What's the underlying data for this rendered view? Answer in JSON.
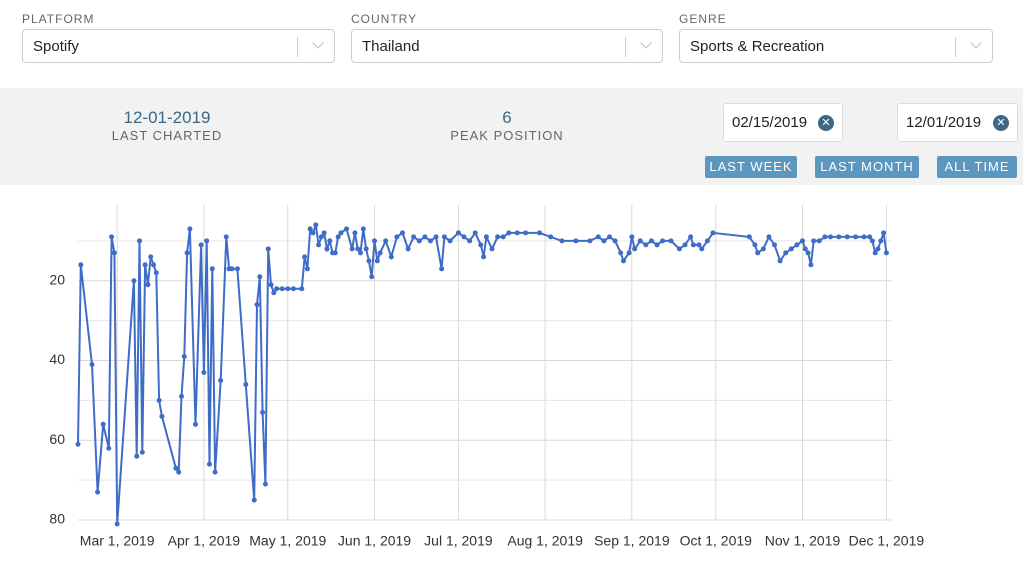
{
  "filters": [
    {
      "label": "PLATFORM",
      "value": "Spotify"
    },
    {
      "label": "COUNTRY",
      "value": "Thailand"
    },
    {
      "label": "GENRE",
      "value": "Sports & Recreation"
    }
  ],
  "stats": [
    {
      "value": "12-01-2019",
      "label": "LAST CHARTED"
    },
    {
      "value": "6",
      "label": "PEAK POSITION"
    }
  ],
  "date_range": {
    "start": "02/15/2019",
    "end": "12/01/2019"
  },
  "buttons": [
    "LAST WEEK",
    "LAST MONTH",
    "ALL TIME"
  ],
  "chart_data": {
    "type": "line",
    "color": "#3f6cc6",
    "grid": true,
    "x": [
      "2019-02-15",
      "2019-02-16",
      "2019-02-20",
      "2019-02-22",
      "2019-02-24",
      "2019-02-26",
      "2019-02-27",
      "2019-02-28",
      "2019-03-01",
      "2019-03-07",
      "2019-03-08",
      "2019-03-09",
      "2019-03-10",
      "2019-03-11",
      "2019-03-12",
      "2019-03-13",
      "2019-03-14",
      "2019-03-15",
      "2019-03-16",
      "2019-03-17",
      "2019-03-22",
      "2019-03-23",
      "2019-03-24",
      "2019-03-25",
      "2019-03-26",
      "2019-03-27",
      "2019-03-29",
      "2019-03-31",
      "2019-04-01",
      "2019-04-02",
      "2019-04-03",
      "2019-04-04",
      "2019-04-05",
      "2019-04-07",
      "2019-04-09",
      "2019-04-10",
      "2019-04-11",
      "2019-04-13",
      "2019-04-16",
      "2019-04-19",
      "2019-04-20",
      "2019-04-21",
      "2019-04-22",
      "2019-04-23",
      "2019-04-24",
      "2019-04-25",
      "2019-04-26",
      "2019-04-27",
      "2019-04-29",
      "2019-05-01",
      "2019-05-03",
      "2019-05-06",
      "2019-05-07",
      "2019-05-08",
      "2019-05-09",
      "2019-05-10",
      "2019-05-11",
      "2019-05-12",
      "2019-05-13",
      "2019-05-14",
      "2019-05-15",
      "2019-05-16",
      "2019-05-17",
      "2019-05-18",
      "2019-05-19",
      "2019-05-20",
      "2019-05-22",
      "2019-05-24",
      "2019-05-25",
      "2019-05-26",
      "2019-05-27",
      "2019-05-28",
      "2019-05-29",
      "2019-05-30",
      "2019-05-31",
      "2019-06-01",
      "2019-06-02",
      "2019-06-03",
      "2019-06-05",
      "2019-06-07",
      "2019-06-09",
      "2019-06-11",
      "2019-06-13",
      "2019-06-15",
      "2019-06-17",
      "2019-06-19",
      "2019-06-21",
      "2019-06-23",
      "2019-06-25",
      "2019-06-26",
      "2019-06-28",
      "2019-07-01",
      "2019-07-03",
      "2019-07-05",
      "2019-07-07",
      "2019-07-09",
      "2019-07-10",
      "2019-07-11",
      "2019-07-13",
      "2019-07-15",
      "2019-07-17",
      "2019-07-19",
      "2019-07-22",
      "2019-07-25",
      "2019-07-30",
      "2019-08-03",
      "2019-08-07",
      "2019-08-12",
      "2019-08-17",
      "2019-08-20",
      "2019-08-22",
      "2019-08-24",
      "2019-08-26",
      "2019-08-28",
      "2019-08-29",
      "2019-08-31",
      "2019-09-01",
      "2019-09-02",
      "2019-09-04",
      "2019-09-06",
      "2019-09-08",
      "2019-09-10",
      "2019-09-12",
      "2019-09-15",
      "2019-09-18",
      "2019-09-20",
      "2019-09-22",
      "2019-09-23",
      "2019-09-25",
      "2019-09-26",
      "2019-09-28",
      "2019-09-30",
      "2019-10-13",
      "2019-10-15",
      "2019-10-16",
      "2019-10-18",
      "2019-10-20",
      "2019-10-22",
      "2019-10-24",
      "2019-10-26",
      "2019-10-28",
      "2019-10-30",
      "2019-11-01",
      "2019-11-02",
      "2019-11-03",
      "2019-11-04",
      "2019-11-05",
      "2019-11-07",
      "2019-11-09",
      "2019-11-11",
      "2019-11-14",
      "2019-11-17",
      "2019-11-20",
      "2019-11-23",
      "2019-11-25",
      "2019-11-26",
      "2019-11-27",
      "2019-11-28",
      "2019-11-29",
      "2019-11-30",
      "2019-12-01"
    ],
    "values": [
      61,
      16,
      41,
      73,
      56,
      62,
      9,
      13,
      81,
      20,
      64,
      10,
      63,
      16,
      21,
      14,
      16,
      18,
      50,
      54,
      67,
      68,
      49,
      39,
      13,
      7,
      56,
      11,
      43,
      10,
      66,
      17,
      68,
      45,
      9,
      17,
      17,
      17,
      46,
      75,
      26,
      19,
      53,
      71,
      12,
      21,
      23,
      22,
      22,
      22,
      22,
      22,
      14,
      17,
      7,
      8,
      6,
      11,
      9,
      8,
      12,
      10,
      13,
      13,
      9,
      8,
      7,
      12,
      8,
      12,
      13,
      7,
      12,
      15,
      19,
      10,
      15,
      13,
      10,
      14,
      9,
      8,
      12,
      9,
      10,
      9,
      10,
      9,
      17,
      9,
      10,
      8,
      9,
      10,
      8,
      11,
      14,
      9,
      12,
      9,
      9,
      8,
      8,
      8,
      8,
      9,
      10,
      10,
      10,
      9,
      10,
      9,
      10,
      13,
      15,
      13,
      9,
      12,
      10,
      11,
      10,
      11,
      10,
      10,
      12,
      11,
      9,
      11,
      11,
      12,
      10,
      8,
      9,
      11,
      13,
      12,
      9,
      11,
      15,
      13,
      12,
      11,
      10,
      12,
      13,
      16,
      10,
      10,
      9,
      9,
      9,
      9,
      9,
      9,
      9,
      10,
      13,
      12,
      10,
      8,
      13
    ],
    "xlim": [
      "2019-02-15",
      "2019-12-03"
    ],
    "xticks": [
      {
        "value": "2019-03-01",
        "label": "Mar 1, 2019"
      },
      {
        "value": "2019-04-01",
        "label": "Apr 1, 2019"
      },
      {
        "value": "2019-05-01",
        "label": "May 1, 2019"
      },
      {
        "value": "2019-06-01",
        "label": "Jun 1, 2019"
      },
      {
        "value": "2019-07-01",
        "label": "Jul 1, 2019"
      },
      {
        "value": "2019-08-01",
        "label": "Aug 1, 2019"
      },
      {
        "value": "2019-09-01",
        "label": "Sep 1, 2019"
      },
      {
        "value": "2019-10-01",
        "label": "Oct 1, 2019"
      },
      {
        "value": "2019-11-01",
        "label": "Nov 1, 2019"
      },
      {
        "value": "2019-12-01",
        "label": "Dec 1, 2019"
      }
    ],
    "ylim": [
      80,
      1
    ],
    "yticks": [
      20,
      40,
      60,
      80
    ],
    "y_minor_ticks": [
      10,
      30,
      50,
      70
    ]
  }
}
